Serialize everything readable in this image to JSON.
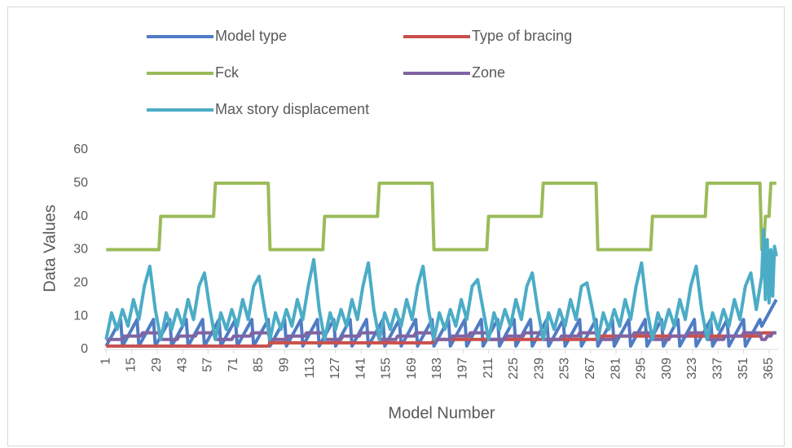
{
  "chart_data": {
    "type": "line",
    "x_label": "Model Number",
    "y_label": "Data Values",
    "xlim": [
      0,
      370
    ],
    "xticks": [
      1,
      15,
      29,
      43,
      57,
      71,
      85,
      99,
      113,
      127,
      141,
      155,
      169,
      183,
      197,
      211,
      225,
      239,
      253,
      267,
      281,
      295,
      309,
      323,
      337,
      351,
      365
    ],
    "ylim": [
      0,
      60
    ],
    "yticks": [
      0,
      10,
      20,
      30,
      40,
      50,
      60
    ],
    "grid": false,
    "legend": "top",
    "series": [
      {
        "name": "Model type",
        "color": "#4f7cc4",
        "x": [
          1,
          9,
          10,
          18,
          19,
          27,
          28,
          36,
          37,
          45,
          46,
          54,
          55,
          63,
          64,
          72,
          73,
          81,
          82,
          90,
          91,
          99,
          100,
          108,
          109,
          117,
          118,
          126,
          127,
          135,
          136,
          144,
          145,
          153,
          154,
          162,
          163,
          171,
          172,
          180,
          181,
          189,
          190,
          198,
          199,
          207,
          208,
          216,
          217,
          225,
          226,
          234,
          235,
          243,
          244,
          252,
          253,
          261,
          262,
          270,
          271,
          279,
          280,
          288,
          289,
          297,
          298,
          306,
          307,
          315,
          316,
          324,
          325,
          333,
          334,
          342,
          343,
          351,
          352,
          360,
          361,
          369
        ],
        "values": [
          1,
          9,
          1,
          9,
          1,
          9,
          1,
          9,
          1,
          9,
          1,
          9,
          1,
          9,
          1,
          9,
          1,
          9,
          1,
          9,
          1,
          9,
          1,
          9,
          1,
          9,
          1,
          9,
          1,
          9,
          1,
          9,
          1,
          9,
          1,
          9,
          1,
          9,
          1,
          9,
          1,
          9,
          1,
          9,
          1,
          9,
          1,
          9,
          1,
          9,
          1,
          9,
          1,
          9,
          1,
          9,
          1,
          9,
          1,
          9,
          1,
          9,
          1,
          9,
          1,
          9,
          1,
          9,
          1,
          9,
          1,
          9,
          1,
          9,
          1,
          9,
          1,
          9,
          1,
          9,
          7,
          15
        ]
      },
      {
        "name": "Type of bracing",
        "color": "#c9504d",
        "x": [
          1,
          90,
          91,
          180,
          181,
          270,
          271,
          360,
          361,
          369
        ],
        "values": [
          1,
          1,
          2,
          2,
          3,
          3,
          4,
          4,
          5,
          5
        ]
      },
      {
        "name": "Fck",
        "color": "#9bbb59",
        "x": [
          1,
          30,
          31,
          60,
          61,
          90,
          91,
          120,
          121,
          150,
          151,
          180,
          181,
          210,
          211,
          240,
          241,
          270,
          271,
          300,
          301,
          330,
          331,
          360,
          361,
          362,
          363,
          365,
          366,
          369
        ],
        "values": [
          30,
          30,
          40,
          40,
          50,
          50,
          30,
          30,
          40,
          40,
          50,
          50,
          30,
          30,
          40,
          40,
          50,
          50,
          30,
          30,
          40,
          40,
          50,
          50,
          30,
          30,
          40,
          40,
          50,
          50
        ]
      },
      {
        "name": "Zone",
        "color": "#8064a2",
        "x": [
          1,
          10,
          11,
          20,
          21,
          30,
          31,
          40,
          41,
          50,
          51,
          60,
          61,
          70,
          71,
          80,
          81,
          90,
          91,
          100,
          101,
          110,
          111,
          120,
          121,
          130,
          131,
          140,
          141,
          150,
          151,
          160,
          161,
          170,
          171,
          180,
          181,
          190,
          191,
          200,
          201,
          210,
          211,
          220,
          221,
          230,
          231,
          240,
          241,
          250,
          251,
          260,
          261,
          270,
          271,
          280,
          281,
          290,
          291,
          300,
          301,
          310,
          311,
          320,
          321,
          330,
          331,
          340,
          341,
          350,
          351,
          360,
          361,
          363,
          364,
          366,
          367,
          369
        ],
        "values": [
          3,
          3,
          4,
          4,
          5,
          5,
          3,
          3,
          4,
          4,
          5,
          5,
          3,
          3,
          4,
          4,
          5,
          5,
          3,
          3,
          4,
          4,
          5,
          5,
          3,
          3,
          4,
          4,
          5,
          5,
          3,
          3,
          4,
          4,
          5,
          5,
          3,
          3,
          4,
          4,
          5,
          5,
          3,
          3,
          4,
          4,
          5,
          5,
          3,
          3,
          4,
          4,
          5,
          5,
          3,
          3,
          4,
          4,
          5,
          5,
          3,
          3,
          4,
          4,
          5,
          5,
          3,
          3,
          4,
          4,
          5,
          5,
          3,
          3,
          4,
          4,
          5,
          5
        ]
      },
      {
        "name": "Max story displacement",
        "color": "#4bacc6",
        "x": [
          1,
          4,
          7,
          10,
          13,
          16,
          19,
          22,
          25,
          28,
          31,
          34,
          37,
          40,
          43,
          46,
          49,
          52,
          55,
          58,
          61,
          64,
          67,
          70,
          73,
          76,
          79,
          82,
          85,
          88,
          91,
          94,
          97,
          100,
          103,
          106,
          109,
          112,
          115,
          118,
          121,
          124,
          127,
          130,
          133,
          136,
          139,
          142,
          145,
          148,
          151,
          154,
          157,
          160,
          163,
          166,
          169,
          172,
          175,
          178,
          181,
          184,
          187,
          190,
          193,
          196,
          199,
          202,
          205,
          208,
          211,
          214,
          217,
          220,
          223,
          226,
          229,
          232,
          235,
          238,
          241,
          244,
          247,
          250,
          253,
          256,
          259,
          262,
          265,
          268,
          271,
          274,
          277,
          280,
          283,
          286,
          289,
          292,
          295,
          298,
          301,
          304,
          307,
          310,
          313,
          316,
          319,
          322,
          325,
          328,
          331,
          334,
          337,
          340,
          343,
          346,
          349,
          352,
          355,
          358,
          361,
          362,
          363,
          364,
          365,
          366,
          367,
          368,
          369
        ],
        "values": [
          3,
          11,
          6,
          12,
          7,
          15,
          9,
          19,
          25,
          12,
          3,
          11,
          6,
          12,
          7,
          15,
          9,
          19,
          23,
          12,
          3,
          11,
          6,
          12,
          7,
          15,
          9,
          19,
          22,
          12,
          3,
          11,
          6,
          12,
          7,
          15,
          9,
          19,
          27,
          12,
          3,
          11,
          6,
          12,
          7,
          15,
          9,
          19,
          26,
          12,
          3,
          11,
          6,
          12,
          7,
          15,
          9,
          19,
          25,
          12,
          3,
          11,
          6,
          12,
          7,
          15,
          9,
          19,
          21,
          12,
          3,
          11,
          6,
          12,
          7,
          15,
          9,
          19,
          23,
          12,
          3,
          11,
          6,
          12,
          7,
          15,
          9,
          19,
          20,
          12,
          3,
          11,
          6,
          12,
          7,
          15,
          9,
          19,
          26,
          12,
          3,
          11,
          6,
          12,
          7,
          15,
          9,
          19,
          25,
          12,
          3,
          11,
          6,
          12,
          7,
          15,
          9,
          19,
          23,
          12,
          22,
          36,
          15,
          33,
          14,
          30,
          16,
          31,
          28
        ]
      }
    ]
  }
}
